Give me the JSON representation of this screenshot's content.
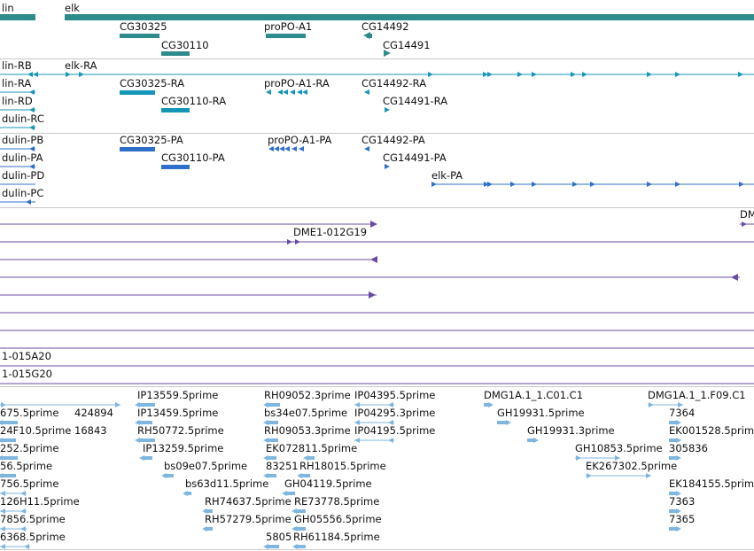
{
  "colors": {
    "gene": "#2e8b8b",
    "transcript": "#1596b6",
    "protein": "#2f6fc9",
    "alignment": "#6a4ba3",
    "est": "#7fb6df"
  },
  "tracks": {
    "gene": {
      "labels": [
        "lin",
        "elk",
        "CG30325",
        "CG30110",
        "proPO-A1",
        "CG14492",
        "CG14491"
      ]
    },
    "transcript": {
      "labels": [
        "lin-RB",
        "elk-RA",
        "lin-RA",
        "CG30325-RA",
        "proPO-A1-RA",
        "CG14492-RA",
        "lin-RD",
        "CG30110-RA",
        "CG14491-RA",
        "dulin-RC"
      ]
    },
    "protein": {
      "labels": [
        "dulin-PB",
        "CG30325-PA",
        "proPO-A1-PA",
        "CG14492-PA",
        "dulin-PA",
        "CG30110-PA",
        "CG14491-PA",
        "dulin-PD",
        "elk-PA",
        "dulin-PC"
      ]
    },
    "alignment": {
      "labels": [
        "DMI",
        "DME1-012G19",
        "1-015A20",
        "1-015G20"
      ]
    },
    "est": {
      "labels": [
        "IP13559.5prime",
        "RH09052.3prime",
        "IP04395.5prime",
        "DMG1A.1_1.C01.C1",
        "DMG1A.1_1.F09.C1",
        "675.5prime",
        "424894",
        "IP13459.5prime",
        "bs34e07.5prime",
        "IP04295.3prime",
        "GH19931.5prime",
        "7364",
        "24F10.5prime",
        "16843",
        "RH50772.5prime",
        "RH09053.3prime",
        "IP04195.5prime",
        "GH19931.3prime",
        "EK001528.5prime",
        "252.5prime",
        "IP13259.5prime",
        "EK072811.5prime",
        "GH10853.5prime",
        "305836",
        "56.5prime",
        "bs09e07.5prime",
        "83251",
        "RH18015.5prime",
        "EK267302.5prime",
        "756.5prime",
        "bs63d11.5prime",
        "GH04119.5prime",
        "EK184155.5prime",
        "126H11.5prime",
        "RH74637.5prime",
        "RE73778.5prime",
        "7363",
        "7856.5prime",
        "RH57279.5prime",
        "GH05556.5prime",
        "7365",
        "6368.5prime",
        "5805",
        "RH61184.5prime"
      ]
    }
  }
}
